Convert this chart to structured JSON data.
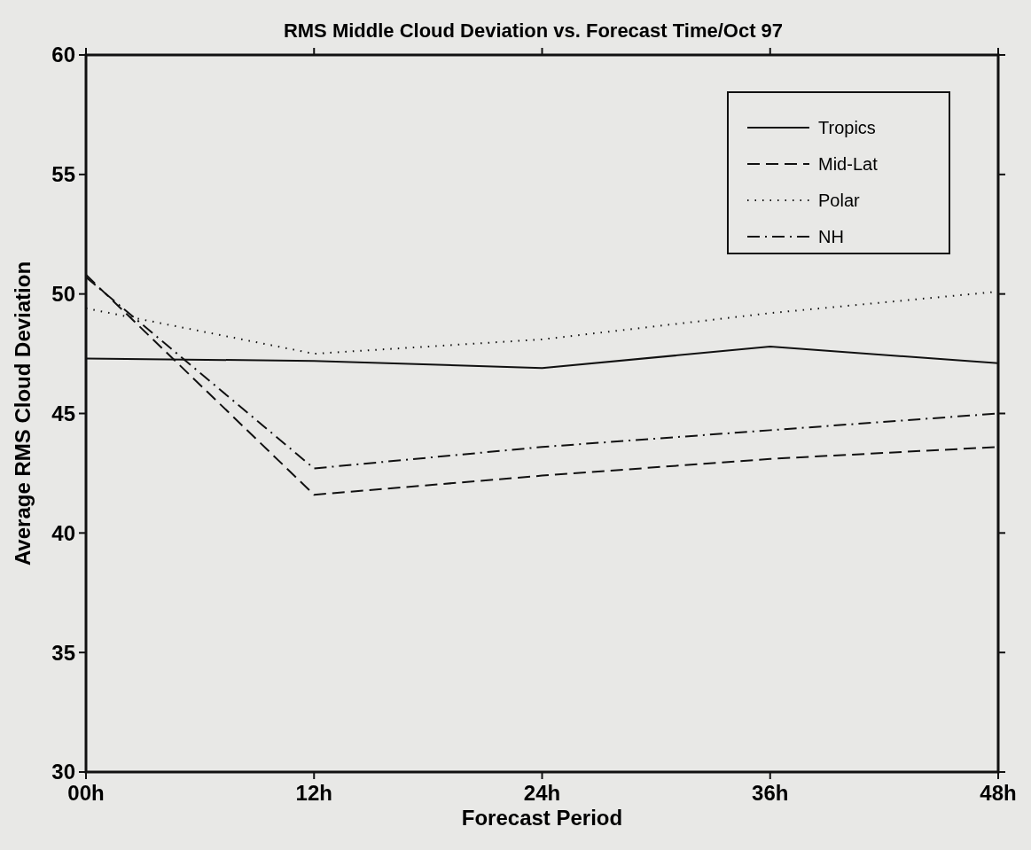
{
  "chart_data": {
    "type": "line",
    "title": "RMS Middle Cloud Deviation vs. Forecast Time/Oct 97",
    "xlabel": "Forecast Period",
    "ylabel": "Average RMS Cloud Deviation",
    "x": [
      0,
      12,
      24,
      36,
      48
    ],
    "xlim": [
      0,
      48
    ],
    "xticks": [
      {
        "value": 0,
        "label": "00h"
      },
      {
        "value": 12,
        "label": "12h"
      },
      {
        "value": 24,
        "label": "24h"
      },
      {
        "value": 36,
        "label": "36h"
      },
      {
        "value": 48,
        "label": "48h"
      }
    ],
    "ylim": [
      30,
      60
    ],
    "yticks": [
      30,
      35,
      40,
      45,
      50,
      55,
      60
    ],
    "grid": false,
    "legend": "top right",
    "marker": "none",
    "series": [
      {
        "name": "Tropics",
        "color": "#111111",
        "line_style": "solid",
        "values": [
          47.3,
          47.2,
          46.9,
          47.8,
          47.1
        ]
      },
      {
        "name": "Mid-Lat",
        "color": "#111111",
        "line_style": "dashed",
        "values": [
          50.8,
          41.6,
          42.4,
          43.1,
          43.6
        ]
      },
      {
        "name": "Polar",
        "color": "#111111",
        "line_style": "dotted",
        "values": [
          49.4,
          47.5,
          48.1,
          49.2,
          50.1
        ]
      },
      {
        "name": "NH",
        "color": "#111111",
        "line_style": "dashdot",
        "values": [
          50.7,
          42.7,
          43.6,
          44.3,
          45.0
        ]
      }
    ]
  }
}
